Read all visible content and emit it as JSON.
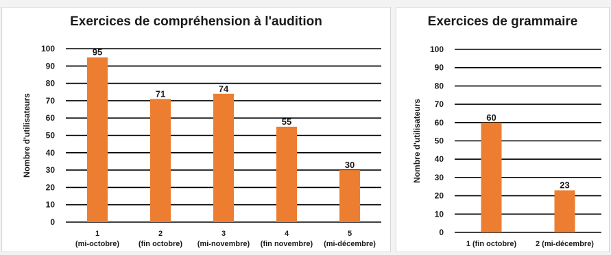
{
  "chart_data": [
    {
      "type": "bar",
      "title": "Exercices de compréhension à l'audition",
      "ylabel": "Nombre d'utilisateurs",
      "xlabel": "",
      "ylim": [
        0,
        100
      ],
      "yticks": [
        0,
        10,
        20,
        30,
        40,
        50,
        60,
        70,
        80,
        90,
        100
      ],
      "categories": [
        [
          "1",
          "(mi-octobre)"
        ],
        [
          "2",
          "(fin octobre)"
        ],
        [
          "3",
          "(mi-novembre)"
        ],
        [
          "4",
          "(fin novembre)"
        ],
        [
          "5",
          "(mi-décembre)"
        ]
      ],
      "values": [
        95,
        71,
        74,
        55,
        30
      ],
      "bar_color": "#ed7d31",
      "grid": true,
      "legend": "none"
    },
    {
      "type": "bar",
      "title": "Exercices de grammaire",
      "ylabel": "Nombre d'utilisateurs",
      "xlabel": "",
      "ylim": [
        0,
        100
      ],
      "yticks": [
        0,
        10,
        20,
        30,
        40,
        50,
        60,
        70,
        80,
        90,
        100
      ],
      "categories": [
        [
          "1 (fin octobre)"
        ],
        [
          "2 (mi-décembre)"
        ]
      ],
      "values": [
        60,
        23
      ],
      "bar_color": "#ed7d31",
      "grid": true,
      "legend": "none"
    }
  ]
}
